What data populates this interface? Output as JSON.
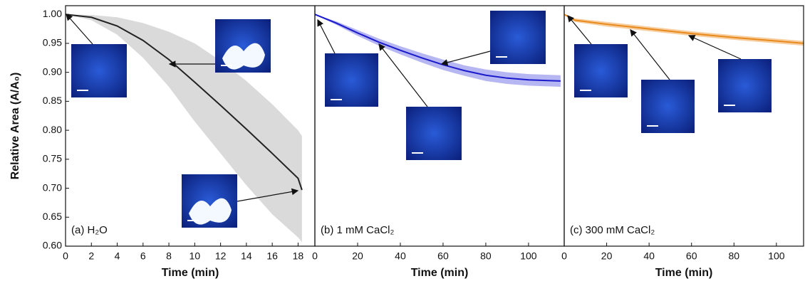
{
  "chart_data": [
    {
      "type": "line",
      "label": "(a) H₂O",
      "ylabel": "Relative Area (A/A₀)",
      "xlabel": "Time (min)",
      "x": [
        0,
        2,
        4,
        6,
        8,
        10,
        12,
        14,
        16,
        18,
        18.3
      ],
      "series": [
        {
          "color": "#222222",
          "band_color": "#d3d3d3",
          "values": [
            1.0,
            0.995,
            0.98,
            0.955,
            0.922,
            0.883,
            0.843,
            0.802,
            0.76,
            0.717,
            0.697
          ],
          "upper": [
            1.0,
            0.999,
            0.995,
            0.985,
            0.97,
            0.95,
            0.92,
            0.885,
            0.845,
            0.8,
            0.79
          ],
          "lower": [
            1.0,
            0.99,
            0.965,
            0.925,
            0.875,
            0.815,
            0.76,
            0.705,
            0.655,
            0.615,
            0.607
          ]
        }
      ],
      "xlim": [
        0,
        19.3
      ],
      "xticks": [
        0,
        2,
        4,
        6,
        8,
        10,
        12,
        14,
        16,
        18
      ],
      "ylim": [
        0.6,
        1.015
      ],
      "yticks": [
        {
          "value": 0.6,
          "label": "0.60"
        },
        0.65,
        {
          "value": 0.7,
          "label": "0.70"
        },
        0.75,
        {
          "value": 0.8,
          "label": "0.80"
        },
        0.85,
        {
          "value": 0.9,
          "label": "0.90"
        },
        0.95,
        {
          "value": 1.0,
          "label": "1.00"
        }
      ]
    },
    {
      "type": "line",
      "label": "(b) 1 mM CaCl₂",
      "xlabel": "Time (min)",
      "x": [
        0,
        10,
        20,
        30,
        40,
        50,
        60,
        70,
        80,
        90,
        100,
        115
      ],
      "series": [
        {
          "color": "#1a1acc",
          "band_color": "#a9a9f0",
          "values": [
            1.0,
            0.985,
            0.968,
            0.952,
            0.938,
            0.925,
            0.913,
            0.903,
            0.895,
            0.89,
            0.887,
            0.885
          ],
          "upper": [
            1.0,
            0.988,
            0.973,
            0.958,
            0.945,
            0.933,
            0.922,
            0.912,
            0.905,
            0.9,
            0.897,
            0.895
          ],
          "lower": [
            1.0,
            0.982,
            0.963,
            0.946,
            0.931,
            0.917,
            0.904,
            0.894,
            0.885,
            0.88,
            0.877,
            0.875
          ]
        }
      ],
      "xlim": [
        0,
        116.7
      ],
      "xticks": [
        0,
        20,
        40,
        60,
        80,
        100
      ],
      "ylim": [
        0.6,
        1.015
      ]
    },
    {
      "type": "line",
      "label": "(c) 300 mM CaCl₂",
      "xlabel": "Time (min)",
      "x": [
        0,
        5,
        20,
        40,
        60,
        80,
        100,
        113
      ],
      "series": [
        {
          "color": "#e8891c",
          "band_color": "#f6c48c",
          "values": [
            1.0,
            0.99,
            0.983,
            0.975,
            0.967,
            0.96,
            0.954,
            0.95
          ],
          "upper": [
            1.0,
            0.993,
            0.987,
            0.979,
            0.971,
            0.964,
            0.958,
            0.954
          ],
          "lower": [
            1.0,
            0.987,
            0.979,
            0.971,
            0.963,
            0.956,
            0.95,
            0.946
          ]
        }
      ],
      "xlim": [
        0,
        112.8
      ],
      "xticks": [
        0,
        20,
        40,
        60,
        80,
        100
      ],
      "ylim": [
        0.6,
        1.015
      ]
    }
  ]
}
